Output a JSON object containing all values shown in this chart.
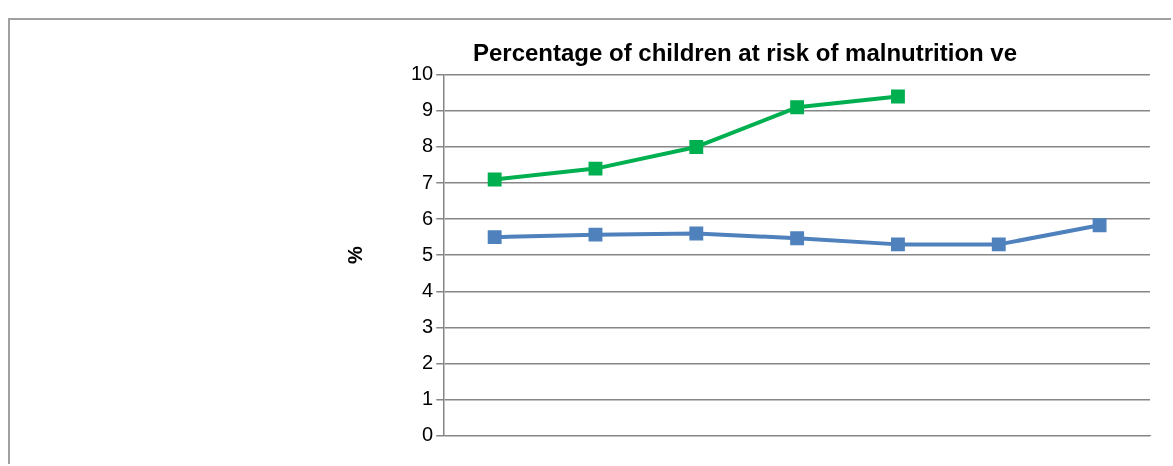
{
  "chart_data": {
    "type": "line",
    "title": "Percentage of children at risk of malnutrition ve",
    "ylabel": "%",
    "categories": [
      null,
      null,
      null,
      null,
      null,
      null,
      null
    ],
    "series": [
      {
        "color": "#00b050",
        "values": [
          7.1,
          7.4,
          8.0,
          9.1,
          9.4,
          null,
          null
        ]
      },
      {
        "color": "#4f81bd",
        "values": [
          5.5,
          5.57,
          5.6,
          5.47,
          5.3,
          5.3,
          5.83
        ]
      }
    ],
    "ylim": [
      0,
      10
    ],
    "yticks": [
      0,
      1,
      2,
      3,
      4,
      5,
      6,
      7,
      8,
      9,
      10
    ],
    "grid": "y",
    "marker": "square",
    "line_style": "solid",
    "legend": false
  }
}
